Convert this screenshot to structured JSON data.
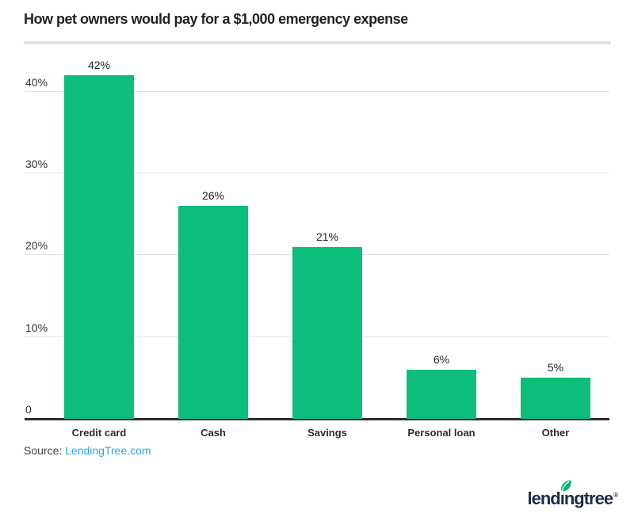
{
  "title": "How pet owners would pay for a $1,000 emergency expense",
  "source": {
    "prefix": "Source: ",
    "link": "LendingTree.com"
  },
  "logo": {
    "pre": "lend",
    "i": "ı",
    "post": "ngtree",
    "reg": "®",
    "leaf_icon": "leaf-icon"
  },
  "colors": {
    "bar_green": "#0dbd7b",
    "leaf_green": "#00b368",
    "navy": "#1d2b49",
    "link_blue": "#2aa9e1",
    "grid_gray": "#e4e4e4",
    "axis_dark": "#2d2d2d"
  },
  "chart_data": {
    "type": "bar",
    "title": "How pet owners would pay for a $1,000 emergency expense",
    "categories": [
      "Credit card",
      "Cash",
      "Savings",
      "Personal loan",
      "Other"
    ],
    "values": [
      42,
      26,
      21,
      6,
      5
    ],
    "value_labels": [
      "42%",
      "26%",
      "21%",
      "6%",
      "5%"
    ],
    "xlabel": "",
    "ylabel": "",
    "ylim": [
      0,
      45
    ],
    "yticks": [
      {
        "value": 40,
        "label": "40%"
      },
      {
        "value": 30,
        "label": "30%"
      },
      {
        "value": 20,
        "label": "20%"
      },
      {
        "value": 10,
        "label": "10%"
      },
      {
        "value": 0,
        "label": "0"
      }
    ],
    "grid": true,
    "legend": false,
    "bar_color": "#0dbd7b"
  }
}
